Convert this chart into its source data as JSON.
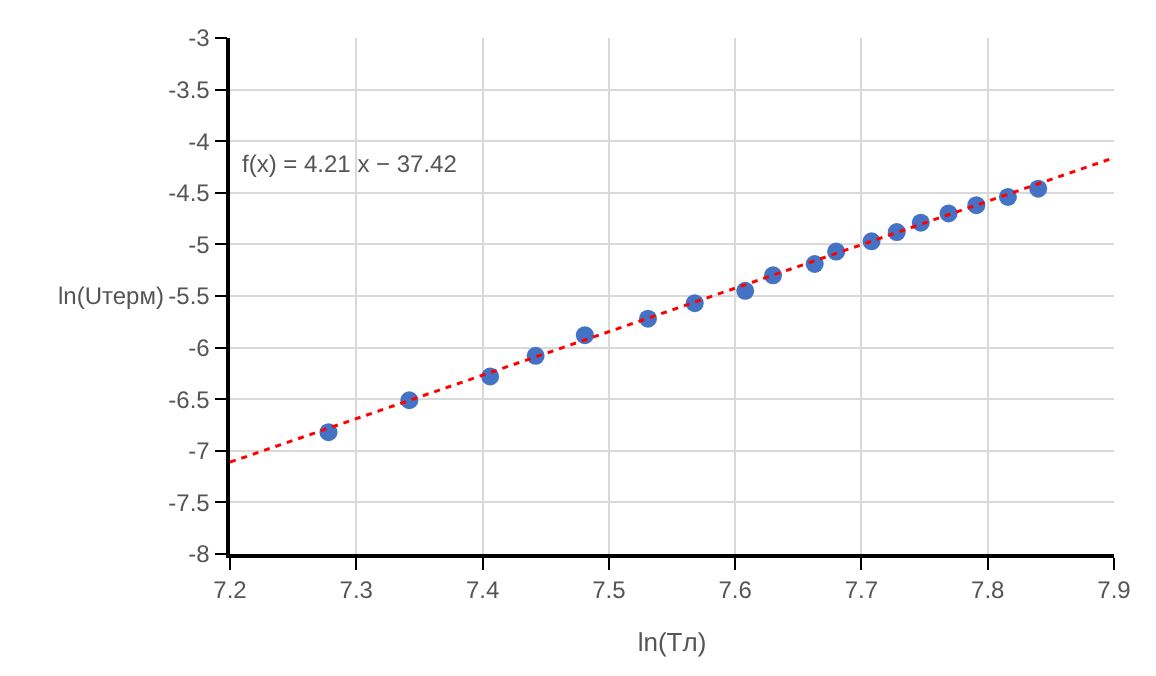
{
  "chart_data": {
    "type": "scatter",
    "xlabel": "ln(Tл)",
    "ylabel": "ln(Uтерм)",
    "xlim": [
      7.2,
      7.9
    ],
    "xticks": [
      7.2,
      7.3,
      7.4,
      7.5,
      7.6,
      7.7,
      7.8,
      7.9
    ],
    "ylim": [
      -8,
      -3
    ],
    "yticks": [
      -8,
      -7.5,
      -7,
      -6.5,
      -6,
      -5.5,
      -5,
      -4.5,
      -4,
      -3.5,
      -3
    ],
    "grid": true,
    "marker": "circle",
    "annotations": [
      "f(x) = 4.21 x − 37.42"
    ],
    "series": [
      {
        "color": "#4472c4",
        "x": [
          7.278,
          7.342,
          7.406,
          7.442,
          7.481,
          7.531,
          7.568,
          7.608,
          7.63,
          7.663,
          7.68,
          7.708,
          7.728,
          7.747,
          7.769,
          7.791,
          7.816,
          7.84
        ],
        "values": [
          -6.82,
          -6.51,
          -6.28,
          -6.08,
          -5.88,
          -5.72,
          -5.57,
          -5.45,
          -5.3,
          -5.19,
          -5.07,
          -4.97,
          -4.88,
          -4.79,
          -4.7,
          -4.62,
          -4.54,
          -4.46
        ]
      },
      {
        "type": "line",
        "color": "#ff0000",
        "line_style": "dotted",
        "marker": "none",
        "x": [
          7.2,
          7.9
        ],
        "values": [
          -7.11,
          -4.16
        ]
      }
    ]
  }
}
